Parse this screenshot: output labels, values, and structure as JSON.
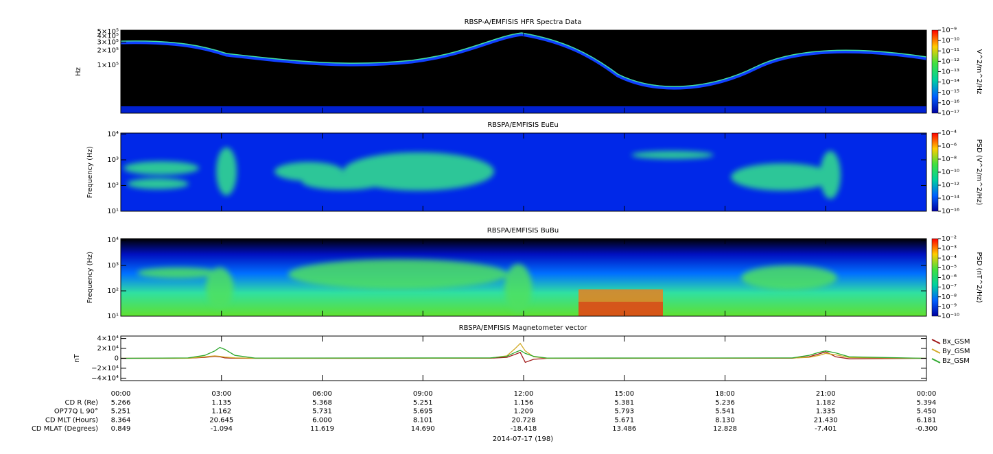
{
  "chart_data": [
    {
      "type": "spectrogram",
      "title": "RBSP-A/EMFISIS  HFR Spectra Data",
      "ylabel": "Hz",
      "ylog": true,
      "xlim": [
        0,
        24
      ],
      "ylim": [
        10000,
        530000
      ],
      "yticks": [
        {
          "value": 100000,
          "label": "1×10⁵"
        },
        {
          "value": 200000,
          "label": "2×10⁵"
        },
        {
          "value": 300000,
          "label": "3×10⁵"
        },
        {
          "value": 400000,
          "label": "4×10⁵"
        },
        {
          "value": 500000,
          "label": "5×10⁵"
        }
      ],
      "colorbar": {
        "label": "V^2/m^2/Hz",
        "log": true,
        "zlim": [
          1e-17,
          1e-09
        ],
        "ticks": [
          {
            "value": 1e-09,
            "label": "10⁻⁹"
          },
          {
            "value": 1e-10,
            "label": "10⁻¹⁰"
          },
          {
            "value": 1e-11,
            "label": "10⁻¹¹"
          },
          {
            "value": 1e-12,
            "label": "10⁻¹²"
          },
          {
            "value": 1e-13,
            "label": "10⁻¹³"
          },
          {
            "value": 1e-14,
            "label": "10⁻¹⁴"
          },
          {
            "value": 1e-15,
            "label": "10⁻¹⁵"
          },
          {
            "value": 1e-16,
            "label": "10⁻¹⁶"
          },
          {
            "value": 1e-17,
            "label": "10⁻¹⁷"
          }
        ]
      }
    },
    {
      "type": "spectrogram",
      "title": "RBSPA/EMFISIS  EuEu",
      "ylabel": "Frequency (Hz)",
      "ylog": true,
      "xlim": [
        0,
        24
      ],
      "ylim": [
        10,
        11000
      ],
      "yticks": [
        {
          "value": 10,
          "label": "10¹"
        },
        {
          "value": 100,
          "label": "10²"
        },
        {
          "value": 1000,
          "label": "10³"
        },
        {
          "value": 10000,
          "label": "10⁴"
        }
      ],
      "colorbar": {
        "label": "PSD (V^2/m^2/Hz)",
        "log": true,
        "zlim": [
          1e-16,
          0.0001
        ],
        "ticks": [
          {
            "value": 0.0001,
            "label": "10⁻⁴"
          },
          {
            "value": 1e-06,
            "label": "10⁻⁶"
          },
          {
            "value": 1e-08,
            "label": "10⁻⁸"
          },
          {
            "value": 1e-10,
            "label": "10⁻¹⁰"
          },
          {
            "value": 1e-12,
            "label": "10⁻¹²"
          },
          {
            "value": 1e-14,
            "label": "10⁻¹⁴"
          },
          {
            "value": 1e-16,
            "label": "10⁻¹⁶"
          }
        ]
      }
    },
    {
      "type": "spectrogram",
      "title": "RBSPA/EMFISIS  BuBu",
      "ylabel": "Frequency (Hz)",
      "ylog": true,
      "xlim": [
        0,
        24
      ],
      "ylim": [
        10,
        11500
      ],
      "yticks": [
        {
          "value": 10,
          "label": "10¹"
        },
        {
          "value": 100,
          "label": "10²"
        },
        {
          "value": 1000,
          "label": "10³"
        },
        {
          "value": 10000,
          "label": "10⁴"
        }
      ],
      "colorbar": {
        "label": "PSD (nT^2/Hz)",
        "log": true,
        "zlim": [
          1e-10,
          0.01
        ],
        "ticks": [
          {
            "value": 0.01,
            "label": "10⁻²"
          },
          {
            "value": 0.001,
            "label": "10⁻³"
          },
          {
            "value": 0.0001,
            "label": "10⁻⁴"
          },
          {
            "value": 1e-05,
            "label": "10⁻⁵"
          },
          {
            "value": 1e-06,
            "label": "10⁻⁶"
          },
          {
            "value": 1e-07,
            "label": "10⁻⁷"
          },
          {
            "value": 1e-08,
            "label": "10⁻⁸"
          },
          {
            "value": 1e-09,
            "label": "10⁻⁹"
          },
          {
            "value": 1e-10,
            "label": "10⁻¹⁰"
          }
        ]
      }
    },
    {
      "type": "line",
      "title": "RBSPA/EMFISIS  Magnetometer vector",
      "ylabel": "nT",
      "ylog": false,
      "xlim": [
        0,
        24
      ],
      "ylim": [
        -45000,
        45000
      ],
      "xticks": [
        {
          "value": 0,
          "label": "00:00"
        },
        {
          "value": 3,
          "label": "03:00"
        },
        {
          "value": 6,
          "label": "06:00"
        },
        {
          "value": 9,
          "label": "09:00"
        },
        {
          "value": 12,
          "label": "12:00"
        },
        {
          "value": 15,
          "label": "15:00"
        },
        {
          "value": 18,
          "label": "18:00"
        },
        {
          "value": 21,
          "label": "21:00"
        },
        {
          "value": 24,
          "label": "00:00"
        }
      ],
      "yticks": [
        {
          "value": -40000,
          "label": "−4×10⁴"
        },
        {
          "value": -20000,
          "label": "−2×10⁴"
        },
        0,
        {
          "value": 20000,
          "label": "2×10⁴"
        },
        {
          "value": 40000,
          "label": "4×10⁴"
        }
      ],
      "x": [
        0,
        2,
        2.5,
        2.8,
        2.95,
        3.1,
        3.4,
        4,
        11,
        11.5,
        11.75,
        11.9,
        12.05,
        12.3,
        12.7,
        20,
        20.5,
        20.8,
        21,
        21.3,
        21.7,
        24
      ],
      "series": [
        {
          "name": "Bx_GSM",
          "color": "#a01818",
          "values": [
            0,
            200,
            2000,
            4000,
            3000,
            1000,
            300,
            0,
            300,
            2000,
            8000,
            12000,
            -8000,
            -2000,
            0,
            300,
            3000,
            9000,
            13000,
            3000,
            -1000,
            0
          ]
        },
        {
          "name": "By_GSM",
          "color": "#d2aa28",
          "values": [
            0,
            300,
            3000,
            5000,
            4000,
            2500,
            1000,
            200,
            500,
            5000,
            20000,
            30000,
            15000,
            3000,
            300,
            500,
            2000,
            6000,
            10000,
            7000,
            1500,
            0
          ]
        },
        {
          "name": "Bz_GSM",
          "color": "#2ea82e",
          "values": [
            0,
            800,
            6000,
            15000,
            22000,
            18000,
            6000,
            500,
            800,
            4000,
            12000,
            16000,
            10000,
            4000,
            500,
            800,
            6000,
            12000,
            15000,
            11000,
            3000,
            0
          ]
        }
      ]
    }
  ],
  "ephemeris": {
    "rows": [
      {
        "label": "CD R (Re)",
        "values": [
          "5.266",
          "1.135",
          "5.368",
          "5.251",
          "1.156",
          "5.381",
          "5.236",
          "1.182",
          "5.394"
        ]
      },
      {
        "label": "OP77Q L 90°",
        "values": [
          "5.251",
          "1.162",
          "5.731",
          "5.695",
          "1.209",
          "5.793",
          "5.541",
          "1.335",
          "5.450"
        ]
      },
      {
        "label": "CD MLT (Hours)",
        "values": [
          "8.364",
          "20.645",
          "6.000",
          "8.101",
          "20.728",
          "5.671",
          "8.130",
          "21.430",
          "6.181"
        ]
      },
      {
        "label": "CD MLAT (Degrees)",
        "values": [
          "0.849",
          "-1.094",
          "11.619",
          "14.690",
          "-18.418",
          "13.486",
          "12.828",
          "-7.401",
          "-0.300"
        ]
      }
    ],
    "date": "2014-07-17 (198)"
  }
}
